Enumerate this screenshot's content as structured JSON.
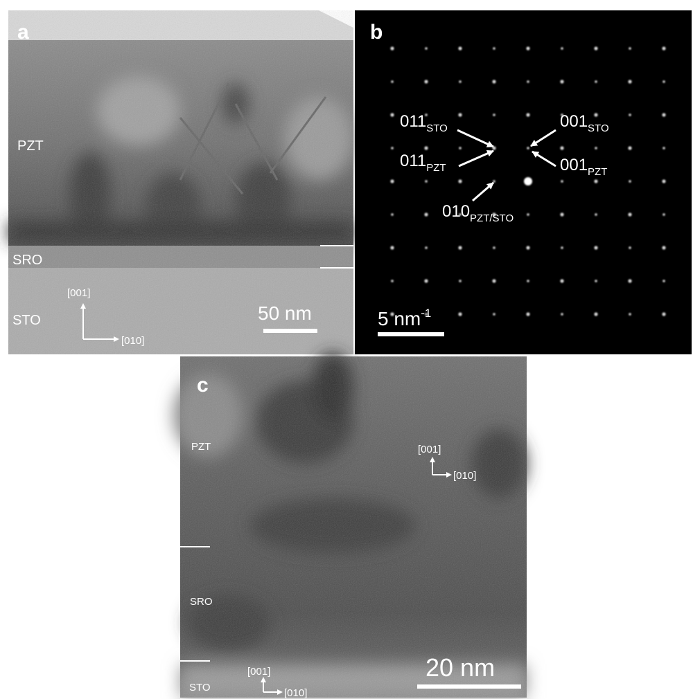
{
  "panels": [
    {
      "label": "a",
      "layers": [
        "PZT",
        "SRO",
        "STO"
      ],
      "axes": {
        "up": "[001]",
        "right": "[010]"
      },
      "scale_bar": "50 nm"
    },
    {
      "label": "b",
      "scale_bar": {
        "text": "5 nm",
        "sup": "-1"
      },
      "spots": [
        {
          "index": "011",
          "sub": "STO"
        },
        {
          "index": "011",
          "sub": "PZT"
        },
        {
          "index": "010",
          "sub": "PZT/STO"
        },
        {
          "index": "001",
          "sub": "STO"
        },
        {
          "index": "001",
          "sub": "PZT"
        }
      ]
    },
    {
      "label": "c",
      "layers": [
        "PZT",
        "SRO",
        "STO"
      ],
      "axes": [
        {
          "up": "[001]",
          "right": "[010]"
        },
        {
          "up": "[001]",
          "right": "[010]"
        }
      ],
      "scale_bar": "20 nm"
    }
  ]
}
